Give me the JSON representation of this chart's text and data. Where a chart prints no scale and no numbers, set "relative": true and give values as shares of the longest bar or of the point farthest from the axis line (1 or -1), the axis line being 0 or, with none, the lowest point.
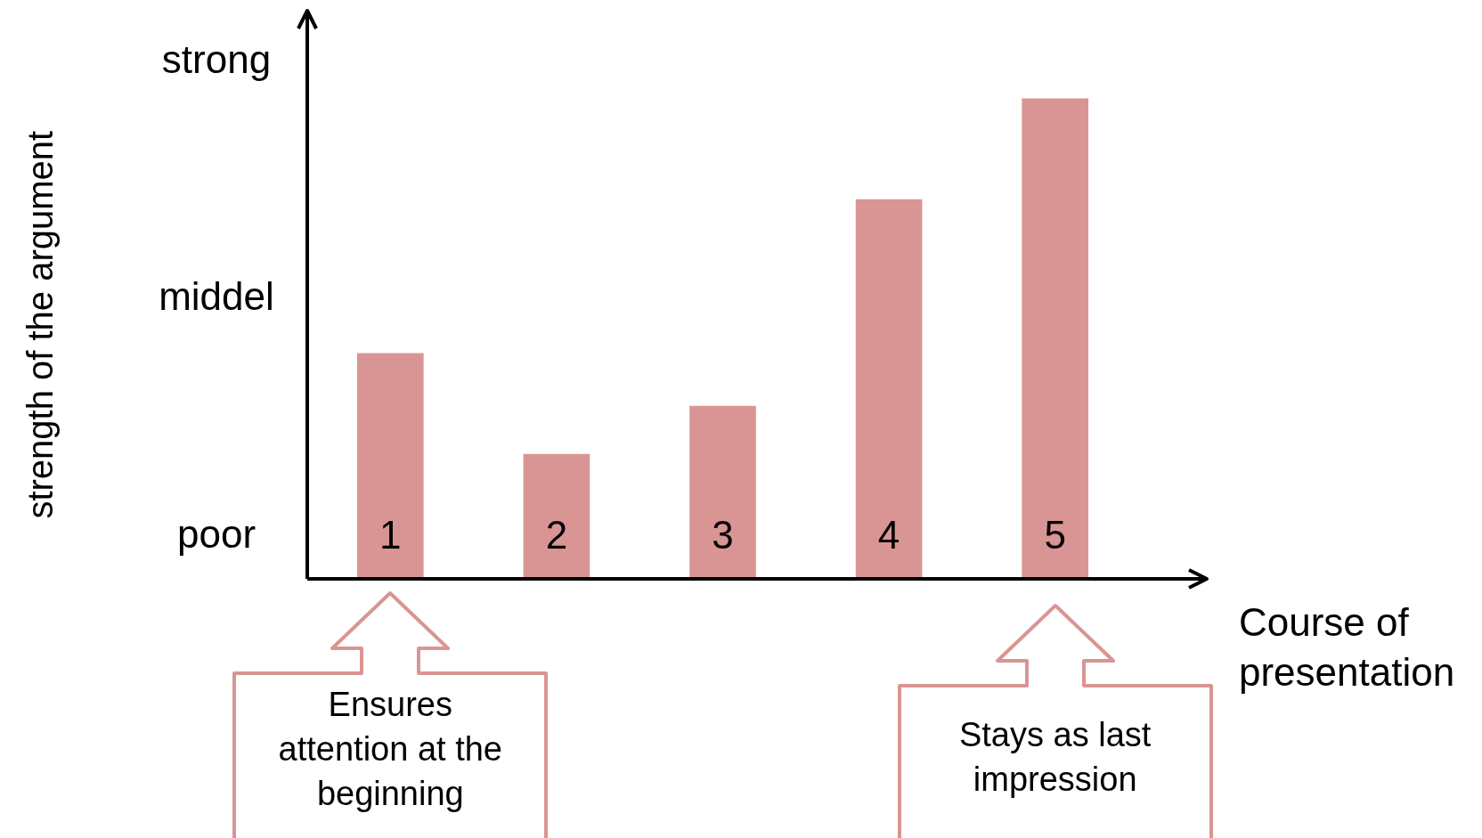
{
  "chart_data": {
    "type": "bar",
    "xlabel": "Course of presentation",
    "categories": [
      "1",
      "2",
      "3",
      "4",
      "5"
    ],
    "values": [
      0.47,
      0.26,
      0.36,
      0.79,
      1
    ],
    "color": "#d99594",
    "relative": true,
    "grid": false,
    "legend": false,
    "annotations": [
      "poor",
      "middel",
      "strong",
      "strength of the argument",
      "Ensures attention at the beginning",
      "Stays as last impression"
    ]
  }
}
